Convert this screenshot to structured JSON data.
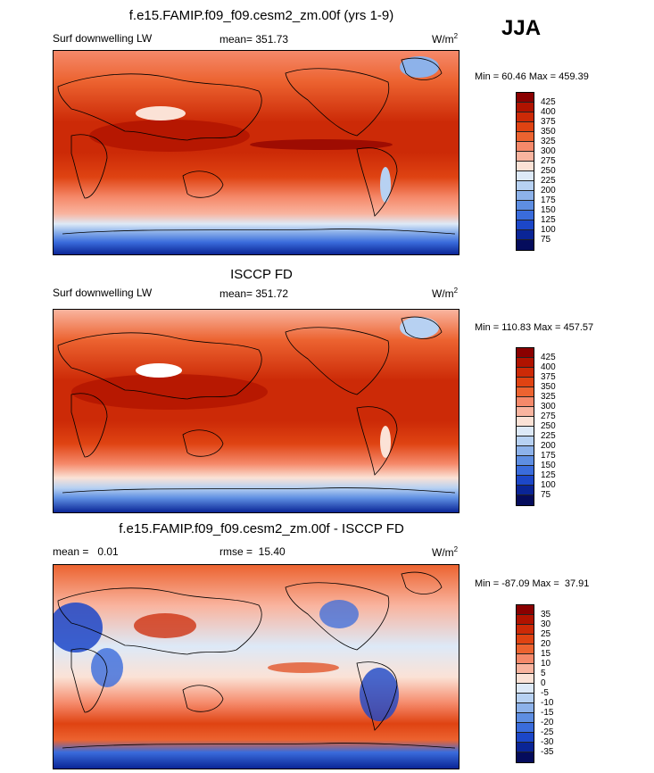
{
  "season": "JJA",
  "panels": [
    {
      "title": "f.e15.FAMIP.f09_f09.cesm2_zm.00f (yrs 1-9)",
      "variable": "Surf downwelling LW",
      "stat": "mean= 351.73",
      "units_base": "W/m",
      "units_exp": "2",
      "minmax": "Min =  60.46 Max = 459.39"
    },
    {
      "title": "ISCCP FD",
      "variable": "Surf downwelling LW",
      "stat": "mean= 351.72",
      "units_base": "W/m",
      "units_exp": "2",
      "minmax": "Min = 110.83 Max = 457.57"
    },
    {
      "title": "f.e15.FAMIP.f09_f09.cesm2_zm.00f - ISCCP FD",
      "variable": "mean =   0.01",
      "stat": "rmse =  15.40",
      "units_base": "W/m",
      "units_exp": "2",
      "minmax": "Min = -87.09 Max =  37.91"
    }
  ],
  "colorbar_abs": {
    "labels": [
      "425",
      "400",
      "375",
      "350",
      "325",
      "300",
      "275",
      "250",
      "225",
      "200",
      "175",
      "150",
      "125",
      "100",
      "75"
    ],
    "colors": [
      "#8a0000",
      "#b01300",
      "#cc2a07",
      "#df4312",
      "#ec6330",
      "#f5896a",
      "#f9b49f",
      "#fbe2d6",
      "#dde9f7",
      "#b7d1f2",
      "#8db2ea",
      "#5e8ee2",
      "#3a6cdc",
      "#1c47c8",
      "#0a2596",
      "#050c5c"
    ]
  },
  "colorbar_diff": {
    "labels": [
      "35",
      "30",
      "25",
      "20",
      "15",
      "10",
      "5",
      "0",
      "-5",
      "-10",
      "-15",
      "-20",
      "-25",
      "-30",
      "-35"
    ],
    "colors": [
      "#8a0000",
      "#b01300",
      "#cc2a07",
      "#df4312",
      "#ec6330",
      "#f5896a",
      "#f9b49f",
      "#fbe2d6",
      "#dde9f7",
      "#b7d1f2",
      "#8db2ea",
      "#5e8ee2",
      "#3a6cdc",
      "#1c47c8",
      "#0a2596",
      "#050c5c"
    ]
  }
}
